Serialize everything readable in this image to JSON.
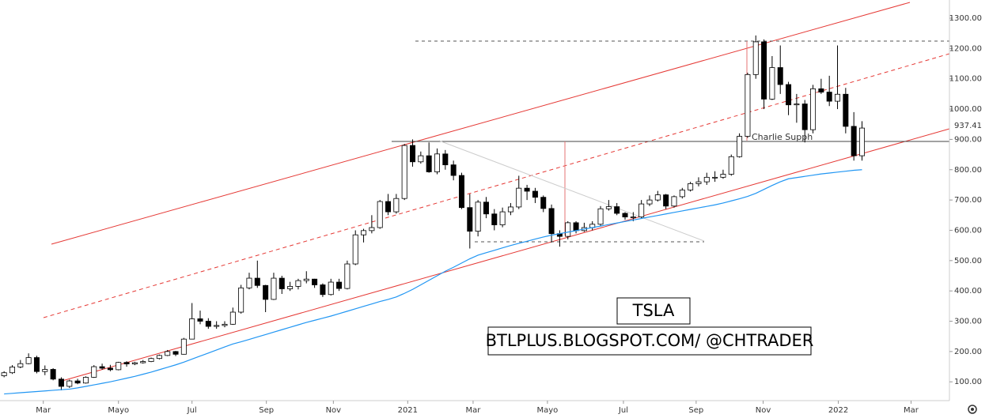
{
  "chart_data": {
    "type": "candlestick",
    "up_color": "#ffffff",
    "down_color": "#000000",
    "edge_color": "#000000",
    "ylim": [
      38,
      1360
    ],
    "yticks": [
      {
        "value": 100,
        "label": "100.00"
      },
      {
        "value": 200,
        "label": "200.00"
      },
      {
        "value": 300,
        "label": "300.00"
      },
      {
        "value": 400,
        "label": "400.00"
      },
      {
        "value": 500,
        "label": "500.00"
      },
      {
        "value": 600,
        "label": "600.00"
      },
      {
        "value": 700,
        "label": "700.00"
      },
      {
        "value": 800,
        "label": "800.00"
      },
      {
        "value": 900,
        "label": "900.00"
      },
      {
        "value": 1000,
        "label": "1000.00"
      },
      {
        "value": 1100,
        "label": "1100.00"
      },
      {
        "value": 1200,
        "label": "1200.00"
      },
      {
        "value": 1300,
        "label": "1300.00"
      }
    ],
    "xlim": [
      -0.5,
      115.7
    ],
    "xticks": [
      {
        "value": 4.8,
        "label": "Mar"
      },
      {
        "value": 14.0,
        "label": "Mayo"
      },
      {
        "value": 23.0,
        "label": "Jul"
      },
      {
        "value": 32.1,
        "label": "Sep"
      },
      {
        "value": 40.3,
        "label": "Nov"
      },
      {
        "value": 49.4,
        "label": "2021"
      },
      {
        "value": 57.4,
        "label": "Mar"
      },
      {
        "value": 66.5,
        "label": "Mayo"
      },
      {
        "value": 75.8,
        "label": "Jul"
      },
      {
        "value": 84.7,
        "label": "Sep"
      },
      {
        "value": 92.9,
        "label": "Nov"
      },
      {
        "value": 102.1,
        "label": "2022"
      },
      {
        "value": 111.0,
        "label": "Mar"
      }
    ],
    "open": [
      120,
      130,
      149,
      160,
      180,
      134,
      141,
      109,
      85,
      103,
      96,
      115,
      150,
      145,
      140,
      164,
      159,
      163,
      167,
      177,
      187,
      200,
      191,
      241,
      308,
      300,
      283,
      286,
      290,
      330,
      410,
      442,
      418,
      372,
      442,
      407,
      415,
      434,
      439,
      420,
      388,
      429,
      408,
      489,
      585,
      599,
      609,
      695,
      661,
      705,
      880,
      826,
      846,
      793,
      852,
      816,
      781,
      675,
      597,
      693,
      654,
      618,
      661,
      677,
      739,
      729,
      709,
      672,
      589,
      580,
      625,
      599,
      609,
      620,
      671,
      678,
      656,
      644,
      644,
      687,
      700,
      717,
      680,
      711,
      733,
      754,
      760,
      775,
      775,
      785,
      843,
      910,
      1114,
      1222,
      1033,
      1137,
      1081,
      1014,
      1017,
      932,
      1067,
      1056,
      1026,
      1049,
      943,
      846
    ],
    "high": [
      135,
      155,
      172,
      194,
      186,
      154,
      145,
      115,
      107,
      110,
      118,
      155,
      160,
      156,
      166,
      168,
      166,
      172,
      180,
      190,
      205,
      202,
      245,
      360,
      335,
      310,
      300,
      300,
      345,
      420,
      460,
      500,
      420,
      460,
      450,
      430,
      440,
      465,
      440,
      425,
      440,
      440,
      500,
      600,
      605,
      650,
      700,
      720,
      720,
      885,
      900,
      860,
      890,
      870,
      865,
      830,
      790,
      720,
      700,
      710,
      670,
      675,
      690,
      780,
      750,
      740,
      715,
      685,
      600,
      630,
      630,
      625,
      630,
      680,
      700,
      690,
      660,
      660,
      700,
      715,
      730,
      720,
      715,
      740,
      760,
      775,
      790,
      795,
      800,
      850,
      920,
      1120,
      1243,
      1230,
      1175,
      1210,
      1090,
      1050,
      1030,
      1080,
      1100,
      1110,
      1210,
      1070,
      990,
      960
    ],
    "low": [
      115,
      126,
      145,
      158,
      128,
      122,
      105,
      72,
      80,
      92,
      94,
      113,
      140,
      135,
      138,
      150,
      155,
      160,
      165,
      174,
      185,
      185,
      190,
      240,
      290,
      275,
      275,
      280,
      288,
      325,
      405,
      410,
      330,
      370,
      390,
      400,
      405,
      425,
      410,
      380,
      385,
      400,
      405,
      485,
      560,
      590,
      605,
      650,
      655,
      700,
      810,
      820,
      790,
      785,
      800,
      765,
      670,
      540,
      580,
      640,
      600,
      610,
      650,
      670,
      700,
      690,
      660,
      560,
      546,
      570,
      590,
      595,
      600,
      615,
      665,
      650,
      635,
      630,
      640,
      680,
      695,
      670,
      675,
      705,
      728,
      745,
      750,
      760,
      770,
      780,
      840,
      905,
      1100,
      1000,
      1030,
      1050,
      980,
      955,
      890,
      920,
      1050,
      1010,
      1000,
      920,
      830,
      830
    ],
    "close": [
      130,
      149,
      160,
      180,
      134,
      141,
      109,
      85,
      103,
      96,
      115,
      150,
      145,
      140,
      164,
      159,
      163,
      167,
      177,
      187,
      200,
      191,
      241,
      308,
      300,
      283,
      286,
      290,
      330,
      410,
      442,
      418,
      372,
      442,
      407,
      415,
      434,
      439,
      420,
      388,
      429,
      408,
      489,
      585,
      599,
      609,
      695,
      661,
      705,
      880,
      826,
      846,
      793,
      852,
      816,
      781,
      675,
      597,
      693,
      654,
      618,
      661,
      677,
      739,
      729,
      709,
      672,
      589,
      580,
      625,
      599,
      609,
      620,
      671,
      678,
      656,
      644,
      644,
      687,
      700,
      717,
      680,
      711,
      733,
      754,
      760,
      775,
      775,
      785,
      843,
      910,
      1114,
      1222,
      1033,
      1137,
      1081,
      1014,
      1017,
      932,
      1067,
      1056,
      1026,
      1049,
      943,
      846,
      937.41
    ],
    "moving_average": {
      "color": "#2196f3",
      "values": [
        60,
        62,
        64,
        66,
        68,
        70,
        72,
        74,
        76,
        80,
        85,
        90,
        95,
        100,
        106,
        112,
        118,
        125,
        132,
        140,
        148,
        156,
        165,
        175,
        185,
        195,
        205,
        215,
        225,
        232,
        240,
        248,
        256,
        264,
        272,
        280,
        288,
        296,
        303,
        310,
        317,
        325,
        333,
        341,
        349,
        357,
        365,
        372,
        380,
        392,
        405,
        420,
        435,
        450,
        465,
        478,
        492,
        506,
        518,
        526,
        534,
        542,
        550,
        557,
        564,
        571,
        578,
        584,
        589,
        594,
        599,
        604,
        609,
        614,
        619,
        624,
        629,
        634,
        639,
        644,
        649,
        654,
        659,
        664,
        669,
        674,
        679,
        684,
        690,
        697,
        704,
        712,
        722,
        735,
        748,
        760,
        770,
        774,
        778,
        782,
        786,
        789,
        792,
        795,
        798,
        800
      ]
    },
    "annotations": [
      "Charlie Supph",
      "TSLA",
      "BTLPLUS.BLOGSPOT.COM/ @CHTRADER"
    ]
  }
}
